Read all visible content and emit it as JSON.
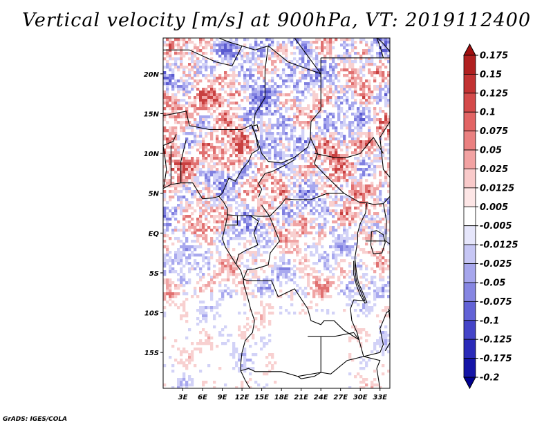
{
  "title": "Vertical velocity [m/s] at 900hPa, VT: 2019112400",
  "credit": "GrADS: IGES/COLA",
  "map": {
    "lon_labels": [
      "3E",
      "6E",
      "9E",
      "12E",
      "15E",
      "18E",
      "21E",
      "24E",
      "27E",
      "30E",
      "33E"
    ],
    "lat_labels": [
      "20N",
      "15N",
      "10N",
      "5N",
      "EQ",
      "5S",
      "10S",
      "15S"
    ],
    "lon_range": [
      0,
      34.5
    ],
    "lat_range": [
      -19.5,
      24.5
    ]
  },
  "colorbar": {
    "labels": [
      "0.175",
      "0.15",
      "0.125",
      "0.1",
      "0.075",
      "0.05",
      "0.025",
      "0.0125",
      "0.005",
      "-0.005",
      "-0.0125",
      "-0.025",
      "-0.05",
      "-0.075",
      "-0.1",
      "-0.125",
      "-0.175",
      "-0.2"
    ],
    "colors": [
      "#a01010",
      "#b02020",
      "#c23232",
      "#d44a4a",
      "#e26464",
      "#ea8080",
      "#f2a2a2",
      "#f9caca",
      "#fde6e6",
      "#ffffff",
      "#e6e6fb",
      "#c6c6f4",
      "#a6a6ec",
      "#8686e2",
      "#6262d6",
      "#4444c8",
      "#2a2ab8",
      "#1414a6",
      "#000090"
    ]
  },
  "colors": {
    "upward_accent": "#d43c3c",
    "downward_accent": "#3c3cd4"
  }
}
